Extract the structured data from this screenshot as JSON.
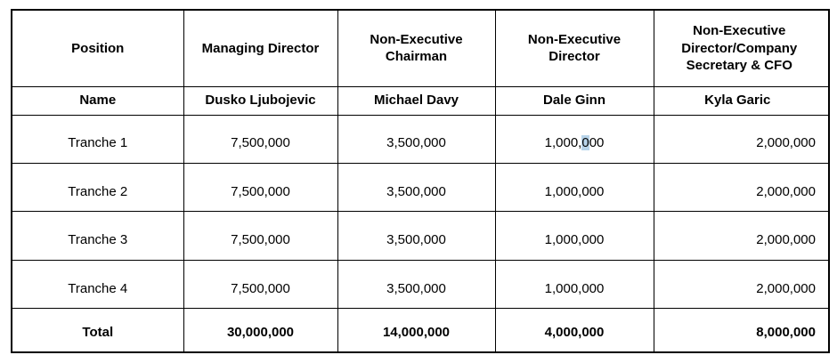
{
  "table": {
    "headers": [
      "Position",
      "Managing Director",
      "Non-Executive Chairman",
      "Non-Executive Director",
      "Non-Executive Director/Company Secretary & CFO"
    ],
    "name_row": {
      "label": "Name",
      "values": [
        "Dusko Ljubojevic",
        "Michael Davy",
        "Dale Ginn",
        "Kyla Garic"
      ]
    },
    "tranche_rows": [
      {
        "label": "Tranche 1",
        "values": [
          "7,500,000",
          "3,500,000",
          "1,000,000",
          "2,000,000"
        ]
      },
      {
        "label": "Tranche 2",
        "values": [
          "7,500,000",
          "3,500,000",
          "1,000,000",
          "2,000,000"
        ]
      },
      {
        "label": "Tranche 3",
        "values": [
          "7,500,000",
          "3,500,000",
          "1,000,000",
          "2,000,000"
        ]
      },
      {
        "label": "Tranche 4",
        "values": [
          "7,500,000",
          "3,500,000",
          "1,000,000",
          "2,000,000"
        ]
      }
    ],
    "total_row": {
      "label": "Total",
      "values": [
        "30,000,000",
        "14,000,000",
        "4,000,000",
        "8,000,000"
      ]
    },
    "selection_highlight": {
      "tranche_index": 0,
      "value_index": 2,
      "char_start": 6,
      "char_end": 7,
      "color": "#b8d4ea"
    }
  }
}
